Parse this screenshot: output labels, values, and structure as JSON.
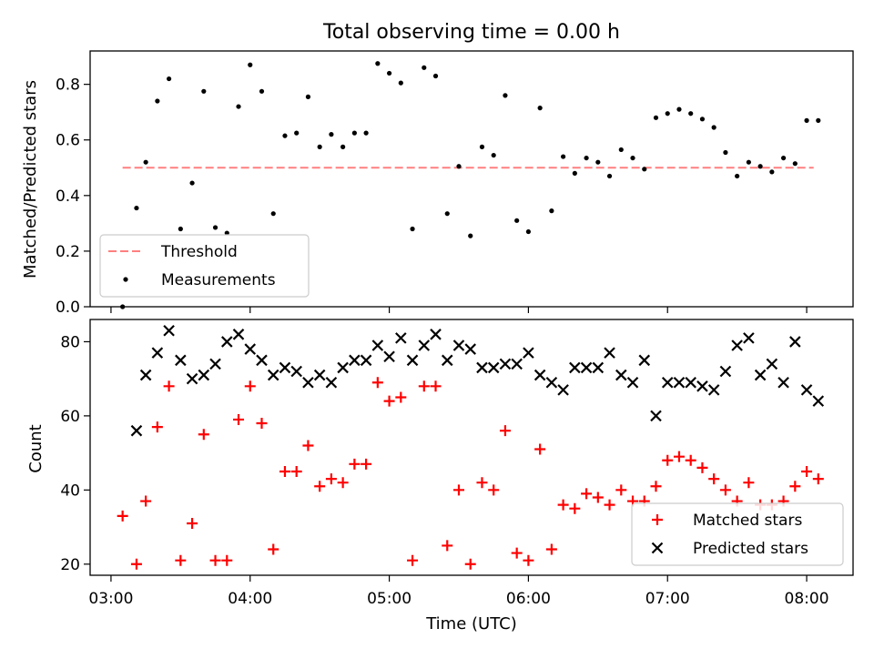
{
  "colors": {
    "threshold": "#ff7f7f",
    "measurements": "#000000",
    "matched": "#ff0000",
    "predicted": "#000000",
    "axis": "#000000",
    "background": "#ffffff"
  },
  "chart_data": [
    {
      "type": "scatter",
      "title": "Total observing time = 0.00 h",
      "xlabel": "",
      "ylabel": "Matched/Predicted stars",
      "xlim": [
        "02:51",
        "08:20"
      ],
      "ylim": [
        0,
        0.92
      ],
      "yticks": [
        "0.0",
        "0.2",
        "0.4",
        "0.6",
        "0.8"
      ],
      "ytick_values": [
        0,
        0.2,
        0.4,
        0.6,
        0.8
      ],
      "xtick_values": [
        "03:00",
        "04:00",
        "05:00",
        "06:00",
        "07:00",
        "08:00"
      ],
      "xtick_labels_shown": false,
      "grid": false,
      "legend": {
        "position": "lower-left",
        "entries": [
          "Threshold",
          "Measurements"
        ]
      },
      "series": [
        {
          "name": "Threshold",
          "kind": "dashed-line",
          "x": [
            "03:05",
            "08:03"
          ],
          "y": [
            0.5,
            0.5
          ]
        },
        {
          "name": "Measurements",
          "kind": "dots",
          "points": [
            [
              "03:05",
              0.0
            ],
            [
              "03:11",
              0.355
            ],
            [
              "03:15",
              0.52
            ],
            [
              "03:20",
              0.74
            ],
            [
              "03:25",
              0.82
            ],
            [
              "03:30",
              0.28
            ],
            [
              "03:35",
              0.445
            ],
            [
              "03:40",
              0.775
            ],
            [
              "03:45",
              0.285
            ],
            [
              "03:50",
              0.265
            ],
            [
              "03:55",
              0.72
            ],
            [
              "04:00",
              0.87
            ],
            [
              "04:05",
              0.775
            ],
            [
              "04:10",
              0.335
            ],
            [
              "04:15",
              0.615
            ],
            [
              "04:20",
              0.625
            ],
            [
              "04:25",
              0.755
            ],
            [
              "04:30",
              0.575
            ],
            [
              "04:35",
              0.62
            ],
            [
              "04:40",
              0.575
            ],
            [
              "04:45",
              0.625
            ],
            [
              "04:50",
              0.625
            ],
            [
              "04:55",
              0.875
            ],
            [
              "05:00",
              0.84
            ],
            [
              "05:05",
              0.805
            ],
            [
              "05:10",
              0.28
            ],
            [
              "05:15",
              0.86
            ],
            [
              "05:20",
              0.83
            ],
            [
              "05:25",
              0.335
            ],
            [
              "05:30",
              0.505
            ],
            [
              "05:35",
              0.255
            ],
            [
              "05:40",
              0.575
            ],
            [
              "05:45",
              0.545
            ],
            [
              "05:50",
              0.76
            ],
            [
              "05:55",
              0.31
            ],
            [
              "06:00",
              0.27
            ],
            [
              "06:05",
              0.715
            ],
            [
              "06:10",
              0.345
            ],
            [
              "06:15",
              0.54
            ],
            [
              "06:20",
              0.48
            ],
            [
              "06:25",
              0.535
            ],
            [
              "06:30",
              0.52
            ],
            [
              "06:35",
              0.47
            ],
            [
              "06:40",
              0.565
            ],
            [
              "06:45",
              0.535
            ],
            [
              "06:50",
              0.495
            ],
            [
              "06:55",
              0.68
            ],
            [
              "07:00",
              0.695
            ],
            [
              "07:05",
              0.71
            ],
            [
              "07:10",
              0.695
            ],
            [
              "07:15",
              0.675
            ],
            [
              "07:20",
              0.645
            ],
            [
              "07:25",
              0.555
            ],
            [
              "07:30",
              0.47
            ],
            [
              "07:35",
              0.52
            ],
            [
              "07:40",
              0.505
            ],
            [
              "07:45",
              0.485
            ],
            [
              "07:50",
              0.535
            ],
            [
              "07:55",
              0.515
            ],
            [
              "08:00",
              0.67
            ],
            [
              "08:05",
              0.67
            ]
          ]
        }
      ]
    },
    {
      "type": "scatter",
      "title": "",
      "xlabel": "Time (UTC)",
      "ylabel": "Count",
      "xlim": [
        "02:51",
        "08:20"
      ],
      "ylim": [
        17,
        86
      ],
      "yticks": [
        "20",
        "40",
        "60",
        "80"
      ],
      "ytick_values": [
        20,
        40,
        60,
        80
      ],
      "xticks": [
        "03:00",
        "04:00",
        "05:00",
        "06:00",
        "07:00",
        "08:00"
      ],
      "grid": false,
      "legend": {
        "position": "lower-right",
        "entries": [
          "Matched stars",
          "Predicted stars"
        ]
      },
      "series": [
        {
          "name": "Matched stars",
          "marker": "plus",
          "points": [
            [
              "03:05",
              33
            ],
            [
              "03:11",
              20
            ],
            [
              "03:15",
              37
            ],
            [
              "03:20",
              57
            ],
            [
              "03:25",
              68
            ],
            [
              "03:30",
              21
            ],
            [
              "03:35",
              31
            ],
            [
              "03:40",
              55
            ],
            [
              "03:45",
              21
            ],
            [
              "03:50",
              21
            ],
            [
              "03:55",
              59
            ],
            [
              "04:00",
              68
            ],
            [
              "04:05",
              58
            ],
            [
              "04:10",
              24
            ],
            [
              "04:15",
              45
            ],
            [
              "04:20",
              45
            ],
            [
              "04:25",
              52
            ],
            [
              "04:30",
              41
            ],
            [
              "04:35",
              43
            ],
            [
              "04:40",
              42
            ],
            [
              "04:45",
              47
            ],
            [
              "04:50",
              47
            ],
            [
              "04:55",
              69
            ],
            [
              "05:00",
              64
            ],
            [
              "05:05",
              65
            ],
            [
              "05:10",
              21
            ],
            [
              "05:15",
              68
            ],
            [
              "05:20",
              68
            ],
            [
              "05:25",
              25
            ],
            [
              "05:30",
              40
            ],
            [
              "05:35",
              20
            ],
            [
              "05:40",
              42
            ],
            [
              "05:45",
              40
            ],
            [
              "05:50",
              56
            ],
            [
              "05:55",
              23
            ],
            [
              "06:00",
              21
            ],
            [
              "06:05",
              51
            ],
            [
              "06:10",
              24
            ],
            [
              "06:15",
              36
            ],
            [
              "06:20",
              35
            ],
            [
              "06:25",
              39
            ],
            [
              "06:30",
              38
            ],
            [
              "06:35",
              36
            ],
            [
              "06:40",
              40
            ],
            [
              "06:45",
              37
            ],
            [
              "06:50",
              37
            ],
            [
              "06:55",
              41
            ],
            [
              "07:00",
              48
            ],
            [
              "07:05",
              49
            ],
            [
              "07:10",
              48
            ],
            [
              "07:15",
              46
            ],
            [
              "07:20",
              43
            ],
            [
              "07:25",
              40
            ],
            [
              "07:30",
              37
            ],
            [
              "07:35",
              42
            ],
            [
              "07:40",
              36
            ],
            [
              "07:45",
              36
            ],
            [
              "07:50",
              37
            ],
            [
              "07:55",
              41
            ],
            [
              "08:00",
              45
            ],
            [
              "08:05",
              43
            ]
          ]
        },
        {
          "name": "Predicted stars",
          "marker": "cross",
          "points": [
            [
              "03:11",
              56
            ],
            [
              "03:15",
              71
            ],
            [
              "03:20",
              77
            ],
            [
              "03:25",
              83
            ],
            [
              "03:30",
              75
            ],
            [
              "03:35",
              70
            ],
            [
              "03:40",
              71
            ],
            [
              "03:45",
              74
            ],
            [
              "03:50",
              80
            ],
            [
              "03:55",
              82
            ],
            [
              "04:00",
              78
            ],
            [
              "04:05",
              75
            ],
            [
              "04:10",
              71
            ],
            [
              "04:15",
              73
            ],
            [
              "04:20",
              72
            ],
            [
              "04:25",
              69
            ],
            [
              "04:30",
              71
            ],
            [
              "04:35",
              69
            ],
            [
              "04:40",
              73
            ],
            [
              "04:45",
              75
            ],
            [
              "04:50",
              75
            ],
            [
              "04:55",
              79
            ],
            [
              "05:00",
              76
            ],
            [
              "05:05",
              81
            ],
            [
              "05:10",
              75
            ],
            [
              "05:15",
              79
            ],
            [
              "05:20",
              82
            ],
            [
              "05:25",
              75
            ],
            [
              "05:30",
              79
            ],
            [
              "05:35",
              78
            ],
            [
              "05:40",
              73
            ],
            [
              "05:45",
              73
            ],
            [
              "05:50",
              74
            ],
            [
              "05:55",
              74
            ],
            [
              "06:00",
              77
            ],
            [
              "06:05",
              71
            ],
            [
              "06:10",
              69
            ],
            [
              "06:15",
              67
            ],
            [
              "06:20",
              73
            ],
            [
              "06:25",
              73
            ],
            [
              "06:30",
              73
            ],
            [
              "06:35",
              77
            ],
            [
              "06:40",
              71
            ],
            [
              "06:45",
              69
            ],
            [
              "06:50",
              75
            ],
            [
              "06:55",
              60
            ],
            [
              "07:00",
              69
            ],
            [
              "07:05",
              69
            ],
            [
              "07:10",
              69
            ],
            [
              "07:15",
              68
            ],
            [
              "07:20",
              67
            ],
            [
              "07:25",
              72
            ],
            [
              "07:30",
              79
            ],
            [
              "07:35",
              81
            ],
            [
              "07:40",
              71
            ],
            [
              "07:45",
              74
            ],
            [
              "07:50",
              69
            ],
            [
              "07:55",
              80
            ],
            [
              "08:00",
              67
            ],
            [
              "08:05",
              64
            ]
          ]
        }
      ]
    }
  ]
}
